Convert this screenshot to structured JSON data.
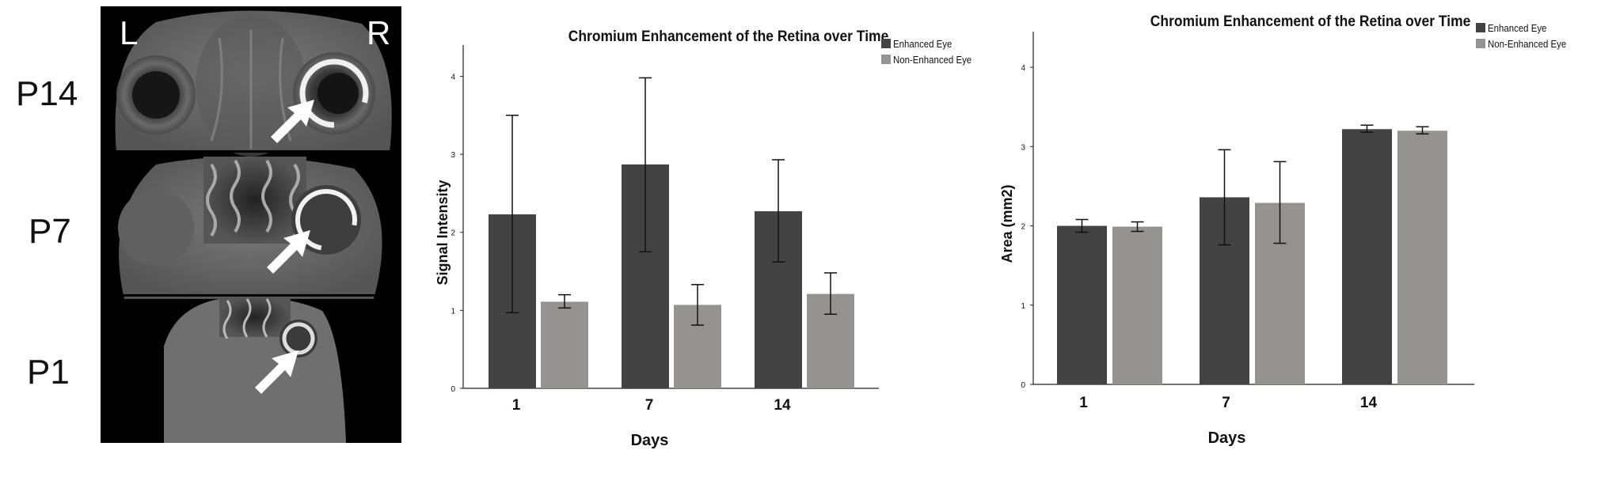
{
  "figure": {
    "row_labels": [
      "P14",
      "P7",
      "P1"
    ],
    "side_labels": {
      "left": "L",
      "right": "R"
    }
  },
  "colors": {
    "enhanced": "#434343",
    "non_enhanced": "#959392",
    "axis": "#222222",
    "text": "#111111"
  },
  "chart_data": [
    {
      "type": "bar",
      "title": "Chromium Enhancement of the Retina over Time",
      "xlabel": "Days",
      "ylabel": "Signal Intensity",
      "categories": [
        "1",
        "7",
        "14"
      ],
      "ylim": [
        0,
        4.4
      ],
      "yticks": [
        0,
        1,
        2,
        3,
        4
      ],
      "series": [
        {
          "name": "Enhanced Eye",
          "values": [
            2.23,
            2.87,
            2.27
          ],
          "err_low": [
            0.97,
            1.75,
            1.62
          ],
          "err_high": [
            3.5,
            3.98,
            2.93
          ]
        },
        {
          "name": "Non-Enhanced Eye",
          "values": [
            1.11,
            1.07,
            1.21
          ],
          "err_low": [
            1.03,
            0.81,
            0.95
          ],
          "err_high": [
            1.2,
            1.33,
            1.48
          ]
        }
      ],
      "legend": "top-right"
    },
    {
      "type": "bar",
      "title": "Chromium Enhancement of the Retina over Time",
      "xlabel": "Days",
      "ylabel": "Area (mm2)",
      "categories": [
        "1",
        "7",
        "14"
      ],
      "ylim": [
        0,
        4.45
      ],
      "yticks": [
        0,
        1,
        2,
        3,
        4
      ],
      "series": [
        {
          "name": "Enhanced Eye",
          "values": [
            2.0,
            2.36,
            3.22
          ],
          "err_low": [
            1.92,
            1.76,
            3.18
          ],
          "err_high": [
            2.08,
            2.96,
            3.27
          ]
        },
        {
          "name": "Non-Enhanced Eye",
          "values": [
            1.99,
            2.29,
            3.2
          ],
          "err_low": [
            1.93,
            1.78,
            3.16
          ],
          "err_high": [
            2.05,
            2.81,
            3.25
          ]
        }
      ],
      "legend": "top-right"
    }
  ]
}
